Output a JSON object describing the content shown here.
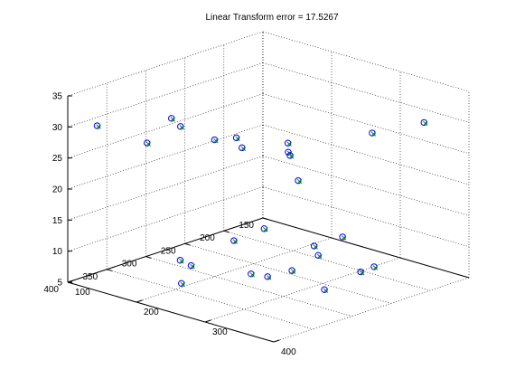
{
  "chart_data": {
    "type": "scatter",
    "title": "Linear Transform error = 17.5267",
    "xlabel": "",
    "ylabel": "",
    "zlabel": "",
    "xlim": [
      100,
      400
    ],
    "ylim": [
      150,
      400
    ],
    "zlim": [
      5,
      35
    ],
    "x_ticks": [
      "100",
      "200",
      "300",
      "400"
    ],
    "y_ticks": [
      "150",
      "200",
      "250",
      "300",
      "350",
      "400"
    ],
    "z_ticks": [
      "5",
      "10",
      "15",
      "20",
      "25",
      "30",
      "35"
    ],
    "grid": true,
    "view": "3d",
    "markers": {
      "data": "circle",
      "transformed": "x-mark"
    },
    "colors": {
      "data": "#0000ff",
      "transformed": "#008000"
    },
    "series": [
      {
        "marker": "circle-with-x",
        "points": [
          {
            "x": 120,
            "y": 380,
            "z": 30
          },
          {
            "x": 170,
            "y": 360,
            "z": 28
          },
          {
            "x": 230,
            "y": 370,
            "z": 33
          },
          {
            "x": 160,
            "y": 320,
            "z": 30
          },
          {
            "x": 200,
            "y": 300,
            "z": 27
          },
          {
            "x": 300,
            "y": 360,
            "z": 33
          },
          {
            "x": 330,
            "y": 320,
            "z": 30
          },
          {
            "x": 240,
            "y": 300,
            "z": 27
          },
          {
            "x": 350,
            "y": 230,
            "z": 30
          },
          {
            "x": 310,
            "y": 300,
            "z": 28
          },
          {
            "x": 380,
            "y": 190,
            "z": 31
          },
          {
            "x": 390,
            "y": 360,
            "z": 29
          },
          {
            "x": 250,
            "y": 250,
            "z": 26
          },
          {
            "x": 200,
            "y": 330,
            "z": 8
          },
          {
            "x": 150,
            "y": 300,
            "z": 6
          },
          {
            "x": 220,
            "y": 360,
            "z": 7
          },
          {
            "x": 260,
            "y": 220,
            "z": 7
          },
          {
            "x": 290,
            "y": 280,
            "z": 8
          },
          {
            "x": 300,
            "y": 320,
            "z": 9
          },
          {
            "x": 310,
            "y": 350,
            "z": 11
          },
          {
            "x": 390,
            "y": 280,
            "z": 11
          },
          {
            "x": 360,
            "y": 300,
            "z": 8
          },
          {
            "x": 170,
            "y": 210,
            "z": 8
          },
          {
            "x": 160,
            "y": 240,
            "z": 7
          },
          {
            "x": 250,
            "y": 180,
            "z": 8
          },
          {
            "x": 330,
            "y": 210,
            "z": 7
          },
          {
            "x": 220,
            "y": 190,
            "z": 6
          }
        ]
      }
    ]
  }
}
